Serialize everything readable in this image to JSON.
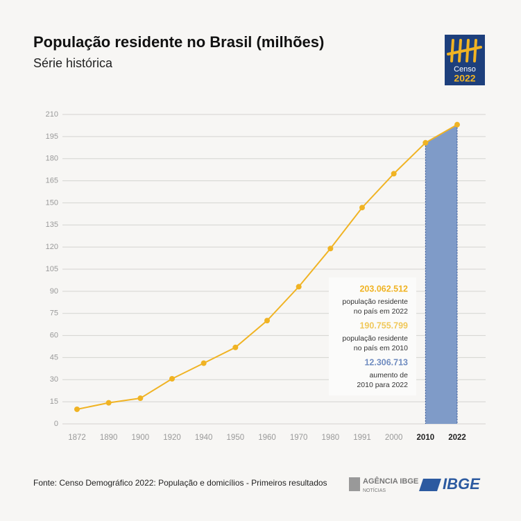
{
  "chart_data": {
    "type": "line",
    "title": "População residente no Brasil (milhões)",
    "subtitle": "Série histórica",
    "categories": [
      "1872",
      "1890",
      "1900",
      "1920",
      "1940",
      "1950",
      "1960",
      "1970",
      "1980",
      "1991",
      "2000",
      "2010",
      "2022"
    ],
    "series": [
      {
        "name": "População residente",
        "color": "#f0b323",
        "values": [
          9.9,
          14.3,
          17.4,
          30.6,
          41.2,
          51.9,
          70.1,
          93.1,
          119.0,
          146.8,
          169.8,
          190.8,
          203.1
        ]
      }
    ],
    "ylim": [
      0,
      210
    ],
    "yticks": [
      0,
      15,
      30,
      45,
      60,
      75,
      90,
      105,
      120,
      135,
      150,
      165,
      180,
      195,
      210
    ],
    "grid": true,
    "highlight": {
      "from": "2010",
      "to": "2022",
      "color": "#7f9bc8",
      "edge_color": "#2f4f8f"
    },
    "annotations": [
      {
        "value": "203.062.512",
        "lines": [
          "população residente",
          "no país em 2022"
        ],
        "color": "#f0b323"
      },
      {
        "value": "190.755.799",
        "lines": [
          "população residente",
          "no país em 2010"
        ],
        "color": "#f0c85a"
      },
      {
        "value": "12.306.713",
        "lines": [
          "aumento de",
          "2010 para 2022"
        ],
        "color": "#6f8cc0"
      }
    ]
  },
  "logo": {
    "word": "Censo",
    "year": "2022"
  },
  "footer": {
    "source": "Fonte: Censo Demográfico 2022: População e domicílios - Primeiros resultados",
    "agency": "AGÊNCIA IBGE",
    "agency_sub": "NOTÍCIAS",
    "brand": "IBGE"
  }
}
